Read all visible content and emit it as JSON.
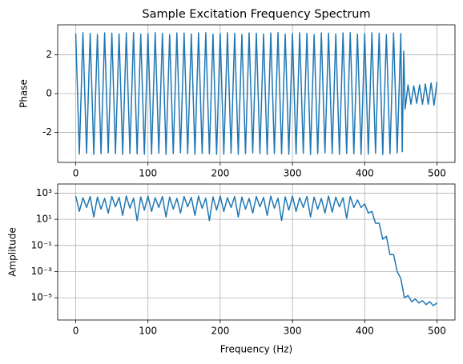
{
  "chart_data": [
    {
      "type": "line",
      "title": "Sample Excitation Frequency Spectrum",
      "ylabel": "Phase",
      "color": "#1f77b4",
      "grid": true,
      "log_y": false,
      "xlim": [
        -25,
        525
      ],
      "xticks": [
        0,
        100,
        200,
        300,
        400,
        500
      ],
      "ylim": [
        -3.55,
        3.55
      ],
      "yticks": [
        -2,
        0,
        2
      ],
      "x": [
        0,
        5,
        10,
        15,
        20,
        25,
        30,
        35,
        40,
        45,
        50,
        55,
        60,
        65,
        70,
        75,
        80,
        85,
        90,
        95,
        100,
        105,
        110,
        115,
        120,
        125,
        130,
        135,
        140,
        145,
        150,
        155,
        160,
        165,
        170,
        175,
        180,
        185,
        190,
        195,
        200,
        205,
        210,
        215,
        220,
        225,
        230,
        235,
        240,
        245,
        250,
        255,
        260,
        265,
        270,
        275,
        280,
        285,
        290,
        295,
        300,
        305,
        310,
        315,
        320,
        325,
        330,
        335,
        340,
        345,
        350,
        355,
        360,
        365,
        370,
        375,
        380,
        385,
        390,
        395,
        400,
        405,
        410,
        415,
        420,
        425,
        430,
        435,
        440,
        445,
        450,
        452,
        454,
        456,
        460,
        464,
        468,
        472,
        476,
        480,
        484,
        488,
        492,
        496,
        500
      ],
      "values": [
        3.1,
        -3.12,
        3.14,
        -3.08,
        3.11,
        -3.14,
        3.05,
        -3.1,
        3.13,
        -3.06,
        3.12,
        -3.1,
        3.08,
        -3.14,
        3.13,
        -3.09,
        3.14,
        -3.11,
        3.07,
        -3.13,
        3.1,
        -3.12,
        3.14,
        -3.08,
        3.11,
        -3.14,
        3.05,
        -3.1,
        3.13,
        -3.06,
        3.12,
        -3.1,
        3.08,
        -3.14,
        3.13,
        -3.09,
        3.14,
        -3.11,
        3.07,
        -3.13,
        3.1,
        -3.12,
        3.14,
        -3.08,
        3.11,
        -3.14,
        3.05,
        -3.1,
        3.13,
        -3.06,
        3.12,
        -3.1,
        3.08,
        -3.14,
        3.13,
        -3.09,
        3.14,
        -3.11,
        3.07,
        -3.13,
        3.1,
        -3.12,
        3.14,
        -3.08,
        3.11,
        -3.14,
        3.05,
        -3.1,
        3.13,
        -3.06,
        3.12,
        -3.1,
        3.08,
        -3.14,
        3.13,
        -3.09,
        3.14,
        -3.11,
        3.07,
        -3.13,
        3.1,
        -3.12,
        3.14,
        -3.08,
        3.11,
        -3.14,
        3.05,
        -3.1,
        3.13,
        -3.06,
        3.1,
        -3.0,
        2.2,
        -0.8,
        0.45,
        -0.55,
        0.4,
        -0.5,
        0.45,
        -0.55,
        0.5,
        -0.55,
        0.55,
        -0.6,
        0.6
      ]
    },
    {
      "type": "line",
      "ylabel": "Amplitude",
      "xlabel": "Frequency (Hz)",
      "color": "#1f77b4",
      "grid": true,
      "log_y": true,
      "xlim": [
        -25,
        525
      ],
      "xticks": [
        0,
        100,
        200,
        300,
        400,
        500
      ],
      "ylim": [
        2e-07,
        5000
      ],
      "yticks": [
        {
          "value": 1e-05,
          "label": "10⁻⁵"
        },
        {
          "value": 0.001,
          "label": "10⁻³"
        },
        {
          "value": 0.1,
          "label": "10⁻¹"
        },
        {
          "value": 10,
          "label": "10¹"
        },
        {
          "value": 1000,
          "label": "10³"
        }
      ],
      "x": [
        0,
        5,
        10,
        15,
        20,
        25,
        30,
        35,
        40,
        45,
        50,
        55,
        60,
        65,
        70,
        75,
        80,
        85,
        90,
        95,
        100,
        105,
        110,
        115,
        120,
        125,
        130,
        135,
        140,
        145,
        150,
        155,
        160,
        165,
        170,
        175,
        180,
        185,
        190,
        195,
        200,
        205,
        210,
        215,
        220,
        225,
        230,
        235,
        240,
        245,
        250,
        255,
        260,
        265,
        270,
        275,
        280,
        285,
        290,
        295,
        300,
        305,
        310,
        315,
        320,
        325,
        330,
        335,
        340,
        345,
        350,
        355,
        360,
        365,
        370,
        375,
        380,
        385,
        390,
        395,
        400,
        405,
        410,
        415,
        420,
        425,
        430,
        435,
        440,
        445,
        450,
        455,
        460,
        465,
        470,
        475,
        480,
        485,
        490,
        495,
        500
      ],
      "values": [
        600,
        40,
        450,
        80,
        550,
        15,
        500,
        60,
        400,
        30,
        550,
        90,
        480,
        20,
        600,
        70,
        420,
        8,
        520,
        50,
        600,
        40,
        450,
        80,
        550,
        15,
        500,
        60,
        400,
        30,
        550,
        90,
        480,
        20,
        600,
        70,
        420,
        8,
        520,
        50,
        600,
        40,
        450,
        80,
        550,
        15,
        500,
        60,
        400,
        30,
        550,
        90,
        480,
        20,
        600,
        70,
        420,
        8,
        520,
        50,
        600,
        40,
        450,
        80,
        550,
        15,
        500,
        60,
        400,
        30,
        600,
        35,
        500,
        90,
        450,
        12,
        550,
        80,
        300,
        80,
        150,
        30,
        40,
        5,
        5,
        0.3,
        0.5,
        0.02,
        0.02,
        0.001,
        0.0003,
        1e-05,
        1.5e-05,
        5e-06,
        8e-06,
        4e-06,
        6e-06,
        3e-06,
        5e-06,
        2.5e-06,
        4e-06
      ]
    }
  ]
}
